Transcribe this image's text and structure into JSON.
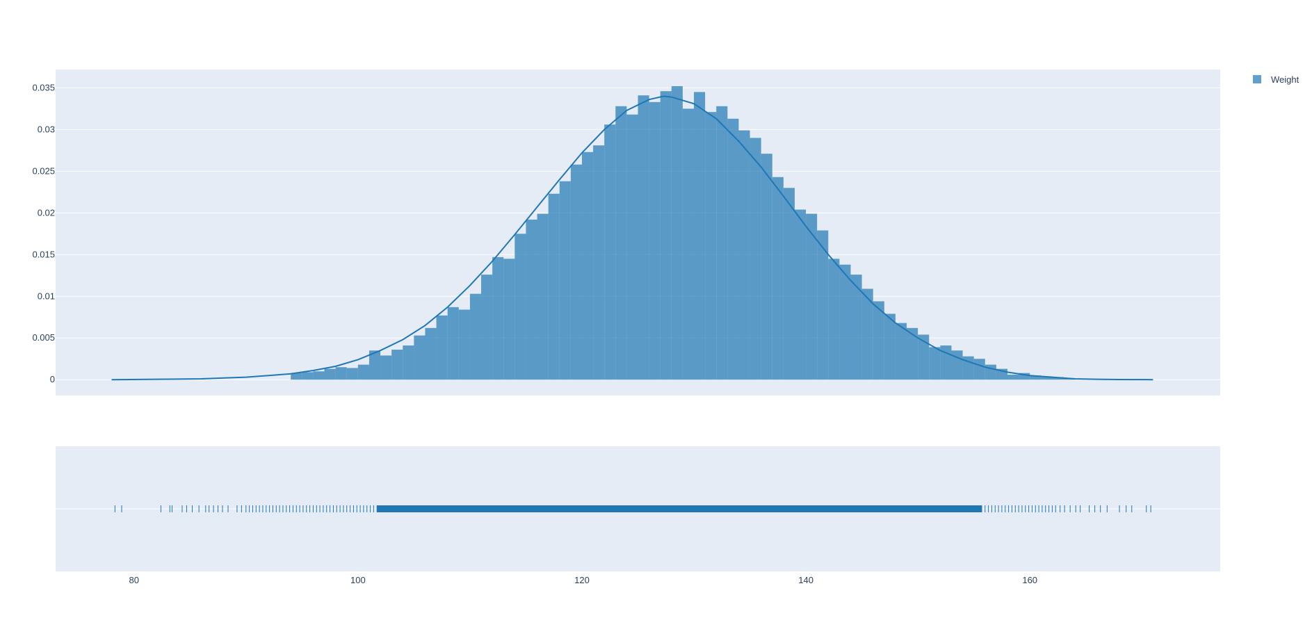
{
  "chart_data": {
    "type": "histogram",
    "title": "",
    "xlabel": "",
    "ylabel": "",
    "colors": {
      "bar": "#1f77b4",
      "plot_bg": "#e5ecf6",
      "grid": "#ffffff",
      "text": "#2a3f5f"
    },
    "legend": {
      "placement": "top-right",
      "entries": [
        {
          "name": "Weight"
        }
      ]
    },
    "histogram": {
      "series_name": "Weight",
      "bin_start": 94,
      "bin_width": 1,
      "densities": [
        0.0008,
        0.0009,
        0.001,
        0.0013,
        0.0015,
        0.0014,
        0.0018,
        0.0035,
        0.0029,
        0.0036,
        0.0041,
        0.0053,
        0.0062,
        0.0077,
        0.0087,
        0.0084,
        0.0103,
        0.0126,
        0.0147,
        0.0145,
        0.0175,
        0.0192,
        0.0199,
        0.0223,
        0.0238,
        0.0258,
        0.0273,
        0.0281,
        0.0306,
        0.0328,
        0.0318,
        0.0341,
        0.0333,
        0.0346,
        0.0352,
        0.0325,
        0.0345,
        0.0321,
        0.0328,
        0.0313,
        0.0299,
        0.029,
        0.0271,
        0.0243,
        0.023,
        0.0204,
        0.0199,
        0.0179,
        0.0145,
        0.0138,
        0.0126,
        0.0109,
        0.0094,
        0.0079,
        0.0068,
        0.0062,
        0.0054,
        0.0039,
        0.0041,
        0.0035,
        0.0028,
        0.0025,
        0.0018,
        0.0013,
        0.0006,
        0.0008,
        0.0005,
        0.0004,
        0.0003,
        0.0002
      ]
    },
    "kde": {
      "x": [
        78,
        82,
        86,
        88,
        90,
        92,
        94,
        96,
        98,
        100,
        102,
        104,
        106,
        108,
        110,
        112,
        114,
        116,
        118,
        120,
        122,
        124,
        126,
        127.3,
        128,
        130,
        132,
        134,
        136,
        138,
        140,
        142,
        144,
        146,
        148,
        150,
        152,
        154,
        156,
        158,
        160,
        162,
        164,
        166,
        168,
        171
      ],
      "y": [
        0,
        5e-05,
        0.0001,
        0.0002,
        0.0003,
        0.0005,
        0.0007,
        0.0011,
        0.0016,
        0.0024,
        0.0035,
        0.0048,
        0.0065,
        0.0087,
        0.0113,
        0.0142,
        0.0174,
        0.0207,
        0.024,
        0.0272,
        0.03,
        0.0323,
        0.0336,
        0.034,
        0.0339,
        0.0331,
        0.0313,
        0.0286,
        0.0255,
        0.022,
        0.0184,
        0.015,
        0.0119,
        0.0091,
        0.0068,
        0.005,
        0.0035,
        0.0024,
        0.0015,
        0.0009,
        0.0005,
        0.0003,
        0.0001,
        5e-05,
        2e-05,
        0
      ]
    },
    "rug_min": 78.3,
    "rug_max": 170.8,
    "rug_sample": [
      78.3,
      78.9,
      82.4,
      83.2,
      83.4,
      84.3,
      84.7,
      85.2,
      85.8,
      86.4,
      86.7,
      87.1,
      87.5,
      87.9,
      88.4,
      89.2,
      89.6,
      90.0,
      90.3,
      90.6,
      90.9,
      91.2,
      91.5,
      91.8,
      92.1,
      92.4,
      92.7,
      93.0,
      93.3,
      93.6,
      93.9,
      94.2,
      94.5,
      94.8,
      95.1,
      95.4,
      95.7,
      96.0,
      96.3,
      96.6,
      96.9,
      97.2,
      97.5,
      97.8,
      98.1,
      98.4,
      98.7,
      99.0,
      99.3,
      99.6,
      99.9,
      100.2,
      100.5,
      100.8,
      101.1,
      101.4,
      101.7,
      155.7,
      156.0,
      156.3,
      156.6,
      156.9,
      157.2,
      157.5,
      157.8,
      158.1,
      158.4,
      158.7,
      159.0,
      159.3,
      159.6,
      159.9,
      160.2,
      160.5,
      160.8,
      161.1,
      161.4,
      161.7,
      162.0,
      162.3,
      162.7,
      163.1,
      163.6,
      164.1,
      164.5,
      165.3,
      165.8,
      166.3,
      166.9,
      168.0,
      168.6,
      169.1,
      170.4,
      170.8
    ],
    "rug_dense_range": [
      101.7,
      155.7
    ],
    "xaxis": {
      "range": [
        73,
        177
      ],
      "ticks": [
        80,
        100,
        120,
        140,
        160
      ],
      "tick_labels": [
        "80",
        "100",
        "120",
        "140",
        "160"
      ]
    },
    "yaxis": {
      "range": [
        -0.0019,
        0.0372
      ],
      "ticks": [
        0,
        0.005,
        0.01,
        0.015,
        0.02,
        0.025,
        0.03,
        0.035
      ],
      "tick_labels": [
        "0",
        "0.005",
        "0.01",
        "0.015",
        "0.02",
        "0.025",
        "0.03",
        "0.035"
      ]
    },
    "grid": true
  }
}
